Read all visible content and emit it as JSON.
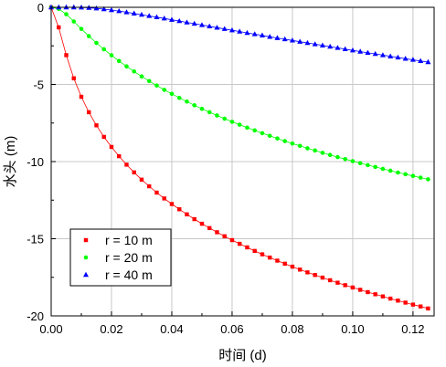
{
  "chart_data": {
    "type": "scatter",
    "xlabel": "时间 (d)",
    "ylabel": "水头 (m)",
    "xlim": [
      0.0,
      0.127
    ],
    "ylim": [
      -20.0,
      0.0
    ],
    "x_ticks": [
      0.0,
      0.02,
      0.04,
      0.06,
      0.08,
      0.1,
      0.12
    ],
    "x_tick_labels": [
      "0.00",
      "0.02",
      "0.04",
      "0.06",
      "0.08",
      "0.10",
      "0.12"
    ],
    "y_ticks": [
      0,
      -5,
      -10,
      -15,
      -20
    ],
    "y_tick_labels": [
      "0",
      "-5",
      "-10",
      "-15",
      "-20"
    ],
    "grid": true,
    "legend_position": "bottom-left",
    "series": [
      {
        "name": "r = 10 m",
        "color": "#ff0000",
        "marker": "square",
        "x": [
          0.0,
          0.0025,
          0.005,
          0.0075,
          0.01,
          0.0125,
          0.015,
          0.0175,
          0.02,
          0.0225,
          0.025,
          0.0275,
          0.03,
          0.0325,
          0.035,
          0.0375,
          0.04,
          0.0425,
          0.045,
          0.0475,
          0.05,
          0.0525,
          0.055,
          0.0575,
          0.06,
          0.0625,
          0.065,
          0.0675,
          0.07,
          0.0725,
          0.075,
          0.0775,
          0.08,
          0.0825,
          0.085,
          0.0875,
          0.09,
          0.0925,
          0.095,
          0.0975,
          0.1,
          0.1025,
          0.105,
          0.1075,
          0.11,
          0.1125,
          0.115,
          0.1175,
          0.12,
          0.1225,
          0.125
        ],
        "y": [
          0.0,
          -1.3,
          -3.1,
          -4.6,
          -5.8,
          -6.8,
          -7.65,
          -8.4,
          -9.05,
          -9.65,
          -10.2,
          -10.7,
          -11.17,
          -11.6,
          -12.01,
          -12.39,
          -12.75,
          -13.09,
          -13.42,
          -13.73,
          -14.03,
          -14.31,
          -14.58,
          -14.84,
          -15.09,
          -15.33,
          -15.56,
          -15.79,
          -16.01,
          -16.22,
          -16.42,
          -16.62,
          -16.81,
          -17.0,
          -17.18,
          -17.35,
          -17.52,
          -17.69,
          -17.85,
          -18.01,
          -18.16,
          -18.31,
          -18.46,
          -18.6,
          -18.74,
          -18.88,
          -19.01,
          -19.14,
          -19.27,
          -19.39,
          -19.52
        ]
      },
      {
        "name": "r = 20 m",
        "color": "#00ff00",
        "marker": "circle",
        "x": [
          0.0,
          0.0025,
          0.005,
          0.0075,
          0.01,
          0.0125,
          0.015,
          0.0175,
          0.02,
          0.0225,
          0.025,
          0.0275,
          0.03,
          0.0325,
          0.035,
          0.0375,
          0.04,
          0.0425,
          0.045,
          0.0475,
          0.05,
          0.0525,
          0.055,
          0.0575,
          0.06,
          0.0625,
          0.065,
          0.0675,
          0.07,
          0.0725,
          0.075,
          0.0775,
          0.08,
          0.0825,
          0.085,
          0.0875,
          0.09,
          0.0925,
          0.095,
          0.0975,
          0.1,
          0.1025,
          0.105,
          0.1075,
          0.11,
          0.1125,
          0.115,
          0.1175,
          0.12,
          0.1225,
          0.125
        ],
        "y": [
          0.0,
          -0.1,
          -0.45,
          -0.92,
          -1.4,
          -1.87,
          -2.31,
          -2.72,
          -3.11,
          -3.48,
          -3.83,
          -4.16,
          -4.48,
          -4.78,
          -5.07,
          -5.35,
          -5.61,
          -5.87,
          -6.11,
          -6.35,
          -6.58,
          -6.8,
          -7.01,
          -7.22,
          -7.42,
          -7.61,
          -7.8,
          -7.98,
          -8.16,
          -8.33,
          -8.5,
          -8.67,
          -8.83,
          -8.98,
          -9.14,
          -9.28,
          -9.43,
          -9.57,
          -9.71,
          -9.84,
          -9.97,
          -10.1,
          -10.23,
          -10.35,
          -10.47,
          -10.59,
          -10.71,
          -10.82,
          -10.93,
          -11.04,
          -11.15
        ]
      },
      {
        "name": "r = 40 m",
        "color": "#0000ff",
        "marker": "triangle",
        "x": [
          0.0,
          0.0025,
          0.005,
          0.0075,
          0.01,
          0.0125,
          0.015,
          0.0175,
          0.02,
          0.0225,
          0.025,
          0.0275,
          0.03,
          0.0325,
          0.035,
          0.0375,
          0.04,
          0.0425,
          0.045,
          0.0475,
          0.05,
          0.0525,
          0.055,
          0.0575,
          0.06,
          0.0625,
          0.065,
          0.0675,
          0.07,
          0.0725,
          0.075,
          0.0775,
          0.08,
          0.0825,
          0.085,
          0.0875,
          0.09,
          0.0925,
          0.095,
          0.0975,
          0.1,
          0.1025,
          0.105,
          0.1075,
          0.11,
          0.1125,
          0.115,
          0.1175,
          0.12,
          0.1225,
          0.125
        ],
        "y": [
          0.0,
          0.0,
          0.0,
          0.0,
          -0.01,
          -0.03,
          -0.07,
          -0.12,
          -0.18,
          -0.25,
          -0.32,
          -0.4,
          -0.48,
          -0.56,
          -0.64,
          -0.72,
          -0.81,
          -0.89,
          -0.98,
          -1.06,
          -1.15,
          -1.23,
          -1.32,
          -1.4,
          -1.49,
          -1.57,
          -1.66,
          -1.74,
          -1.82,
          -1.91,
          -1.99,
          -2.07,
          -2.15,
          -2.23,
          -2.31,
          -2.39,
          -2.47,
          -2.55,
          -2.63,
          -2.71,
          -2.79,
          -2.87,
          -2.95,
          -3.02,
          -3.1,
          -3.18,
          -3.25,
          -3.33,
          -3.4,
          -3.48,
          -3.55
        ]
      }
    ]
  }
}
